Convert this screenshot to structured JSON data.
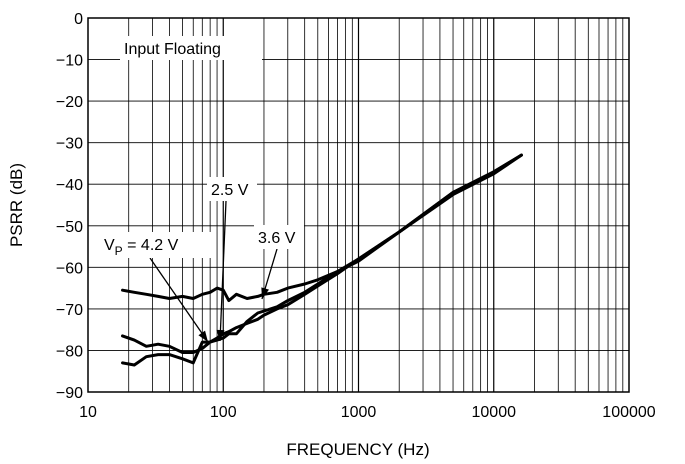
{
  "chart_data": {
    "type": "line",
    "xlabel": "FREQUENCY (Hz)",
    "ylabel": "PSRR (dB)",
    "xscale": "log",
    "xlim": [
      10,
      100000
    ],
    "ylim": [
      -90,
      0
    ],
    "xticks": [
      "10",
      "100",
      "1000",
      "10000",
      "100000"
    ],
    "yticks": [
      "0",
      "−10",
      "−20",
      "−30",
      "−40",
      "−50",
      "−60",
      "−70",
      "−80",
      "−90"
    ],
    "grid": true,
    "series": [
      {
        "name": "2.5 V",
        "x": [
          18,
          22,
          27,
          33,
          40,
          50,
          60,
          70,
          80,
          90,
          100,
          110,
          125,
          150,
          180,
          200,
          250,
          300,
          400,
          500,
          700,
          1000,
          2000,
          5000,
          10000,
          16000
        ],
        "y": [
          -76.5,
          -77.5,
          -79,
          -78.5,
          -79,
          -80.5,
          -80.5,
          -79.5,
          -78,
          -77,
          -76,
          -75.5,
          -74.5,
          -73.5,
          -72.5,
          -71.5,
          -70,
          -69,
          -66.5,
          -64.5,
          -61.5,
          -58,
          -51.5,
          -42,
          -37,
          -33
        ]
      },
      {
        "name": "3.6 V",
        "x": [
          18,
          22,
          27,
          33,
          40,
          50,
          60,
          70,
          80,
          90,
          100,
          110,
          125,
          150,
          180,
          200,
          250,
          300,
          400,
          500,
          700,
          1000,
          2000,
          5000,
          10000,
          16000
        ],
        "y": [
          -65.5,
          -66,
          -66.5,
          -67,
          -67.5,
          -67,
          -67.5,
          -66.5,
          -66,
          -65,
          -65.5,
          -68,
          -66.5,
          -67.5,
          -67,
          -66.5,
          -66,
          -65,
          -64,
          -63,
          -61,
          -58.5,
          -51.5,
          -42.5,
          -37.5,
          -33
        ]
      },
      {
        "name": "V_P = 4.2 V",
        "x": [
          18,
          22,
          27,
          33,
          40,
          50,
          60,
          70,
          80,
          90,
          100,
          110,
          125,
          150,
          180,
          200,
          250,
          300,
          400,
          500,
          700,
          1000,
          2000,
          5000,
          10000,
          16000
        ],
        "y": [
          -83,
          -83.5,
          -81.5,
          -81,
          -81,
          -82,
          -83,
          -78,
          -78,
          -77.5,
          -77,
          -76,
          -76,
          -73,
          -71,
          -70.5,
          -69.5,
          -68,
          -66,
          -64,
          -61,
          -58,
          -51.5,
          -42,
          -37,
          -33
        ]
      }
    ],
    "annotations": [
      {
        "text": "Input Floating"
      },
      {
        "text": "2.5 V"
      },
      {
        "text": "3.6 V"
      },
      {
        "text_main": "V",
        "text_sub": "P",
        "text_rest": " = 4.2 V"
      }
    ]
  }
}
